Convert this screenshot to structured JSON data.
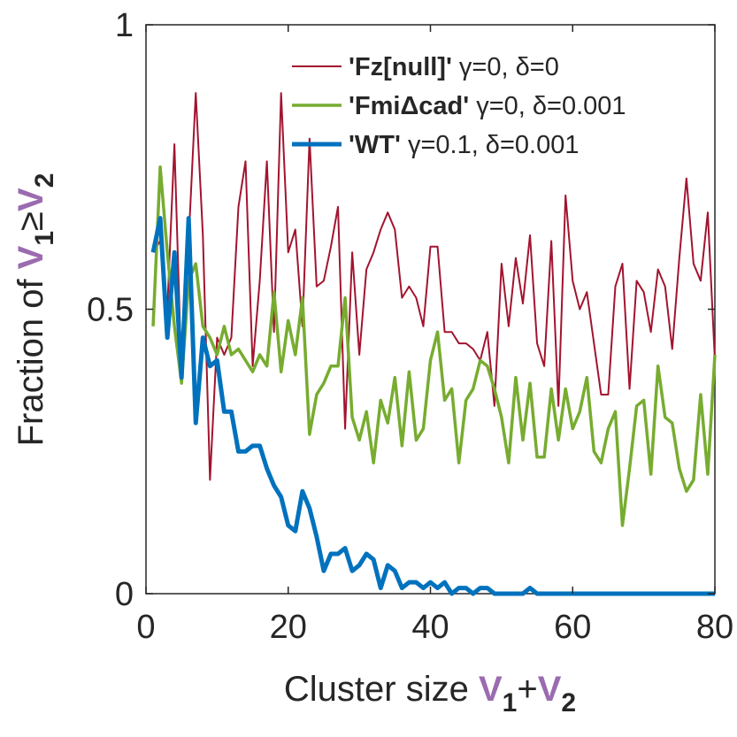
{
  "chart_data": {
    "type": "line",
    "xlabel": [
      "Cluster size ",
      "V",
      "1",
      "+",
      "V",
      "2"
    ],
    "ylabel": [
      "Fraction of ",
      "V",
      "1",
      "≥",
      "V",
      "2"
    ],
    "x": [
      1,
      2,
      3,
      4,
      5,
      6,
      7,
      8,
      9,
      10,
      11,
      12,
      13,
      14,
      15,
      16,
      17,
      18,
      19,
      20,
      21,
      22,
      23,
      24,
      25,
      26,
      27,
      28,
      29,
      30,
      31,
      32,
      33,
      34,
      35,
      36,
      37,
      38,
      39,
      40,
      41,
      42,
      43,
      44,
      45,
      46,
      47,
      48,
      49,
      50,
      51,
      52,
      53,
      54,
      55,
      56,
      57,
      58,
      59,
      60,
      61,
      62,
      63,
      64,
      65,
      66,
      67,
      68,
      69,
      70,
      71,
      72,
      73,
      74,
      75,
      76,
      77,
      78,
      79,
      80
    ],
    "series": [
      {
        "name": [
          "'Fz[null]'",
          " γ=0, δ=0"
        ],
        "color": "#a2142f",
        "width": 2,
        "values": [
          0.6,
          0.62,
          0.5,
          0.79,
          0.38,
          0.62,
          0.88,
          0.63,
          0.2,
          0.45,
          0.42,
          0.45,
          0.68,
          0.76,
          0.4,
          0.55,
          0.76,
          0.46,
          0.88,
          0.6,
          0.64,
          0.47,
          0.8,
          0.54,
          0.55,
          0.61,
          0.68,
          0.29,
          0.6,
          0.42,
          0.57,
          0.6,
          0.64,
          0.67,
          0.64,
          0.52,
          0.54,
          0.52,
          0.47,
          0.61,
          0.61,
          0.46,
          0.46,
          0.44,
          0.44,
          0.43,
          0.41,
          0.46,
          0.33,
          0.58,
          0.47,
          0.59,
          0.51,
          0.63,
          0.44,
          0.4,
          0.62,
          0.33,
          0.7,
          0.55,
          0.5,
          0.53,
          0.44,
          0.35,
          0.35,
          0.54,
          0.58,
          0.36,
          0.55,
          0.53,
          0.46,
          0.57,
          0.54,
          0.43,
          0.59,
          0.73,
          0.58,
          0.55,
          0.67,
          0.41
        ]
      },
      {
        "name": [
          "'FmiΔcad'",
          " γ=0, δ=0.001"
        ],
        "color": "#77ac30",
        "width": 3.5,
        "values": [
          0.47,
          0.75,
          0.6,
          0.47,
          0.37,
          0.55,
          0.58,
          0.47,
          0.45,
          0.42,
          0.47,
          0.42,
          0.43,
          0.41,
          0.39,
          0.42,
          0.4,
          0.53,
          0.39,
          0.48,
          0.42,
          0.52,
          0.28,
          0.35,
          0.37,
          0.4,
          0.4,
          0.52,
          0.31,
          0.27,
          0.32,
          0.23,
          0.34,
          0.3,
          0.38,
          0.26,
          0.39,
          0.27,
          0.29,
          0.41,
          0.46,
          0.34,
          0.36,
          0.23,
          0.34,
          0.36,
          0.41,
          0.4,
          0.36,
          0.31,
          0.23,
          0.38,
          0.27,
          0.37,
          0.24,
          0.24,
          0.36,
          0.27,
          0.36,
          0.29,
          0.32,
          0.38,
          0.25,
          0.23,
          0.29,
          0.32,
          0.12,
          0.22,
          0.33,
          0.34,
          0.21,
          0.4,
          0.31,
          0.3,
          0.22,
          0.18,
          0.2,
          0.35,
          0.21,
          0.42
        ]
      },
      {
        "name": [
          "'WT'",
          " γ=0.1, δ=0.001"
        ],
        "color": "#0072bd",
        "width": 5,
        "values": [
          0.6,
          0.66,
          0.45,
          0.6,
          0.38,
          0.66,
          0.3,
          0.45,
          0.4,
          0.41,
          0.32,
          0.32,
          0.25,
          0.25,
          0.26,
          0.26,
          0.22,
          0.19,
          0.17,
          0.12,
          0.11,
          0.18,
          0.15,
          0.1,
          0.04,
          0.07,
          0.07,
          0.08,
          0.04,
          0.05,
          0.07,
          0.06,
          0.01,
          0.05,
          0.04,
          0.01,
          0.02,
          0.02,
          0.01,
          0.02,
          0.01,
          0.02,
          0,
          0.01,
          0.01,
          0,
          0.01,
          0.01,
          0,
          0,
          0,
          0,
          0,
          0.01,
          0,
          0,
          0,
          0,
          0,
          0,
          0,
          0,
          0,
          0,
          0,
          0,
          0,
          0,
          0,
          0,
          0,
          0,
          0,
          0,
          0,
          0,
          0,
          0,
          0,
          0
        ]
      }
    ],
    "xlim": [
      0,
      80
    ],
    "xticks": [
      0,
      20,
      40,
      60,
      80
    ],
    "ylim": [
      0,
      1
    ],
    "yticks": [
      0,
      0.5,
      1
    ],
    "grid": false,
    "legend": "upper right"
  }
}
